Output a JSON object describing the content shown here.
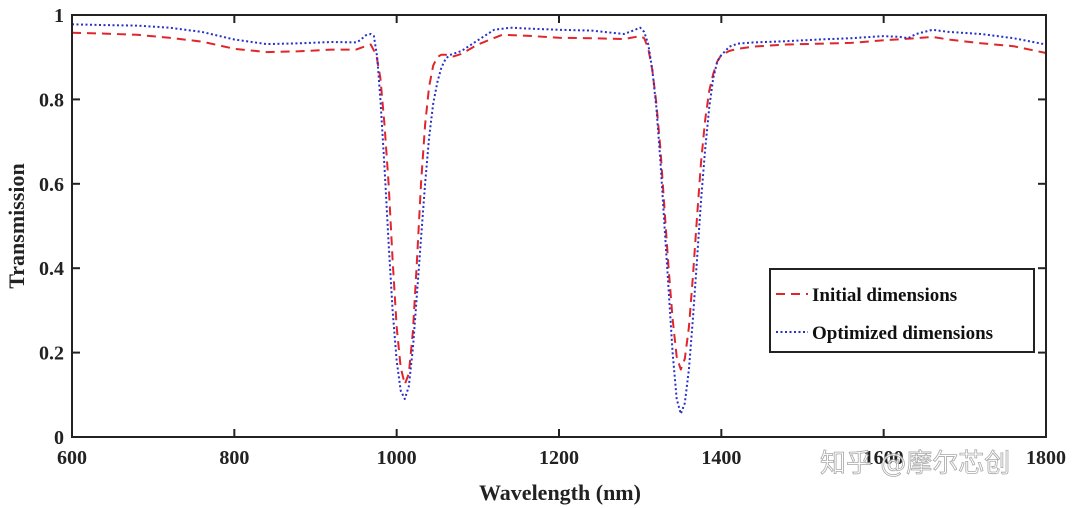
{
  "watermark": "知乎 @摩尔芯创",
  "colors": {
    "axis": "#222222",
    "initial": "#e0262a",
    "optimized": "#2830c8",
    "background": "#ffffff"
  },
  "chart_data": {
    "type": "line",
    "title": "",
    "xlabel": "Wavelength (nm)",
    "ylabel": "Transmission",
    "xlim": [
      600,
      1800
    ],
    "ylim": [
      0,
      1
    ],
    "grid": false,
    "legend_position": "bottom-right",
    "x_ticks": [
      {
        "value": 600,
        "label": "600"
      },
      {
        "value": 800,
        "label": "800"
      },
      {
        "value": 1000,
        "label": "1000"
      },
      {
        "value": 1200,
        "label": "1200"
      },
      {
        "value": 1400,
        "label": "1400"
      },
      {
        "value": 1600,
        "label": "1600"
      },
      {
        "value": 1800,
        "label": "1800"
      }
    ],
    "y_ticks": [
      {
        "value": 0,
        "label": "0"
      },
      {
        "value": 0.2,
        "label": "0.2"
      },
      {
        "value": 0.4,
        "label": "0.4"
      },
      {
        "value": 0.6,
        "label": "0.6"
      },
      {
        "value": 0.8,
        "label": "0.8"
      },
      {
        "value": 1,
        "label": "1"
      }
    ],
    "series": [
      {
        "name": "Initial dimensions",
        "style": "dashed",
        "x": [
          600,
          640,
          680,
          720,
          760,
          800,
          840,
          880,
          920,
          950,
          960,
          968,
          975,
          980,
          985,
          990,
          995,
          1000,
          1005,
          1010,
          1015,
          1020,
          1025,
          1030,
          1035,
          1040,
          1045,
          1050,
          1055,
          1060,
          1070,
          1080,
          1100,
          1130,
          1160,
          1200,
          1240,
          1280,
          1300,
          1305,
          1310,
          1315,
          1320,
          1325,
          1330,
          1335,
          1340,
          1345,
          1350,
          1355,
          1360,
          1365,
          1370,
          1375,
          1380,
          1385,
          1390,
          1395,
          1400,
          1410,
          1420,
          1440,
          1480,
          1520,
          1560,
          1600,
          1640,
          1660,
          1680,
          1720,
          1760,
          1800
        ],
        "y": [
          0.958,
          0.956,
          0.953,
          0.946,
          0.937,
          0.92,
          0.912,
          0.914,
          0.918,
          0.918,
          0.925,
          0.93,
          0.905,
          0.85,
          0.74,
          0.6,
          0.42,
          0.26,
          0.165,
          0.125,
          0.15,
          0.25,
          0.42,
          0.6,
          0.74,
          0.83,
          0.88,
          0.9,
          0.906,
          0.906,
          0.902,
          0.908,
          0.93,
          0.953,
          0.951,
          0.946,
          0.945,
          0.943,
          0.95,
          0.945,
          0.92,
          0.87,
          0.79,
          0.68,
          0.54,
          0.4,
          0.28,
          0.19,
          0.16,
          0.185,
          0.26,
          0.38,
          0.52,
          0.65,
          0.75,
          0.82,
          0.86,
          0.89,
          0.905,
          0.915,
          0.92,
          0.925,
          0.93,
          0.932,
          0.934,
          0.94,
          0.945,
          0.948,
          0.942,
          0.933,
          0.926,
          0.91
        ]
      },
      {
        "name": "Optimized dimensions",
        "style": "dotted",
        "x": [
          600,
          640,
          680,
          720,
          760,
          800,
          840,
          880,
          920,
          950,
          955,
          962,
          968,
          972,
          976,
          980,
          985,
          990,
          995,
          1000,
          1005,
          1010,
          1015,
          1020,
          1025,
          1030,
          1035,
          1040,
          1045,
          1050,
          1055,
          1060,
          1065,
          1070,
          1080,
          1100,
          1120,
          1140,
          1160,
          1200,
          1240,
          1280,
          1290,
          1300,
          1305,
          1310,
          1315,
          1320,
          1325,
          1330,
          1335,
          1340,
          1345,
          1350,
          1355,
          1360,
          1365,
          1370,
          1375,
          1380,
          1385,
          1390,
          1395,
          1400,
          1405,
          1410,
          1420,
          1440,
          1480,
          1520,
          1560,
          1600,
          1620,
          1630,
          1640,
          1660,
          1680,
          1720,
          1760,
          1800
        ],
        "y": [
          0.978,
          0.976,
          0.975,
          0.97,
          0.96,
          0.942,
          0.931,
          0.933,
          0.936,
          0.935,
          0.94,
          0.952,
          0.955,
          0.95,
          0.9,
          0.8,
          0.64,
          0.46,
          0.3,
          0.18,
          0.11,
          0.09,
          0.12,
          0.21,
          0.34,
          0.47,
          0.6,
          0.71,
          0.79,
          0.84,
          0.875,
          0.895,
          0.905,
          0.908,
          0.915,
          0.94,
          0.965,
          0.97,
          0.968,
          0.965,
          0.963,
          0.955,
          0.962,
          0.97,
          0.96,
          0.93,
          0.87,
          0.78,
          0.65,
          0.5,
          0.35,
          0.2,
          0.09,
          0.055,
          0.08,
          0.16,
          0.28,
          0.42,
          0.56,
          0.68,
          0.78,
          0.85,
          0.89,
          0.905,
          0.915,
          0.925,
          0.932,
          0.935,
          0.938,
          0.942,
          0.945,
          0.95,
          0.948,
          0.945,
          0.955,
          0.965,
          0.96,
          0.955,
          0.945,
          0.93
        ]
      }
    ]
  }
}
